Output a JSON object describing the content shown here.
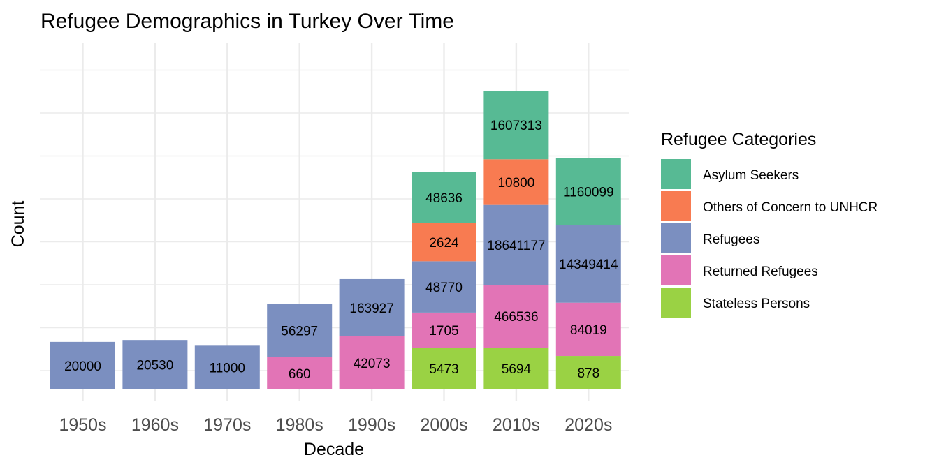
{
  "chart_data": {
    "type": "bar",
    "stacked": true,
    "title": "Refugee Demographics in Turkey Over Time",
    "xlabel": "Decade",
    "ylabel": "Count",
    "categories": [
      "1950s",
      "1960s",
      "1970s",
      "1980s",
      "1990s",
      "2000s",
      "2010s",
      "2020s"
    ],
    "stack_order_bottom_to_top": [
      "Stateless Persons",
      "Returned Refugees",
      "Refugees",
      "Others of Concern to UNHCR",
      "Asylum Seekers"
    ],
    "legend_title": "Refugee Categories",
    "legend_position": "right",
    "grid": true,
    "y_axis_ticks_shown": false,
    "series": [
      {
        "name": "Asylum Seekers",
        "color": "#57BA94",
        "values": [
          null,
          null,
          null,
          null,
          null,
          48636,
          1607313,
          1160099
        ],
        "display_height": [
          0,
          0,
          0,
          0,
          0,
          1.35,
          1.8,
          1.75
        ]
      },
      {
        "name": "Others of Concern to UNHCR",
        "color": "#F87B51",
        "values": [
          null,
          null,
          null,
          null,
          null,
          2624,
          10800,
          null
        ],
        "display_height": [
          0,
          0,
          0,
          0,
          0,
          1.0,
          1.2,
          0
        ]
      },
      {
        "name": "Refugees",
        "color": "#7B8FC0",
        "values": [
          20000,
          20530,
          11000,
          56297,
          163927,
          48770,
          18641177,
          14349414
        ],
        "display_height": [
          1.25,
          1.3,
          1.15,
          1.4,
          1.5,
          1.35,
          2.1,
          2.05
        ]
      },
      {
        "name": "Returned Refugees",
        "color": "#E274B6",
        "values": [
          null,
          null,
          null,
          660,
          42073,
          1705,
          466536,
          84019
        ],
        "display_height": [
          0,
          0,
          0,
          0.85,
          1.4,
          0.92,
          1.65,
          1.4
        ]
      },
      {
        "name": "Stateless Persons",
        "color": "#9AD244",
        "values": [
          null,
          null,
          null,
          null,
          null,
          5473,
          5694,
          878
        ],
        "display_height": [
          0,
          0,
          0,
          0,
          0,
          1.1,
          1.1,
          0.88
        ]
      }
    ]
  }
}
